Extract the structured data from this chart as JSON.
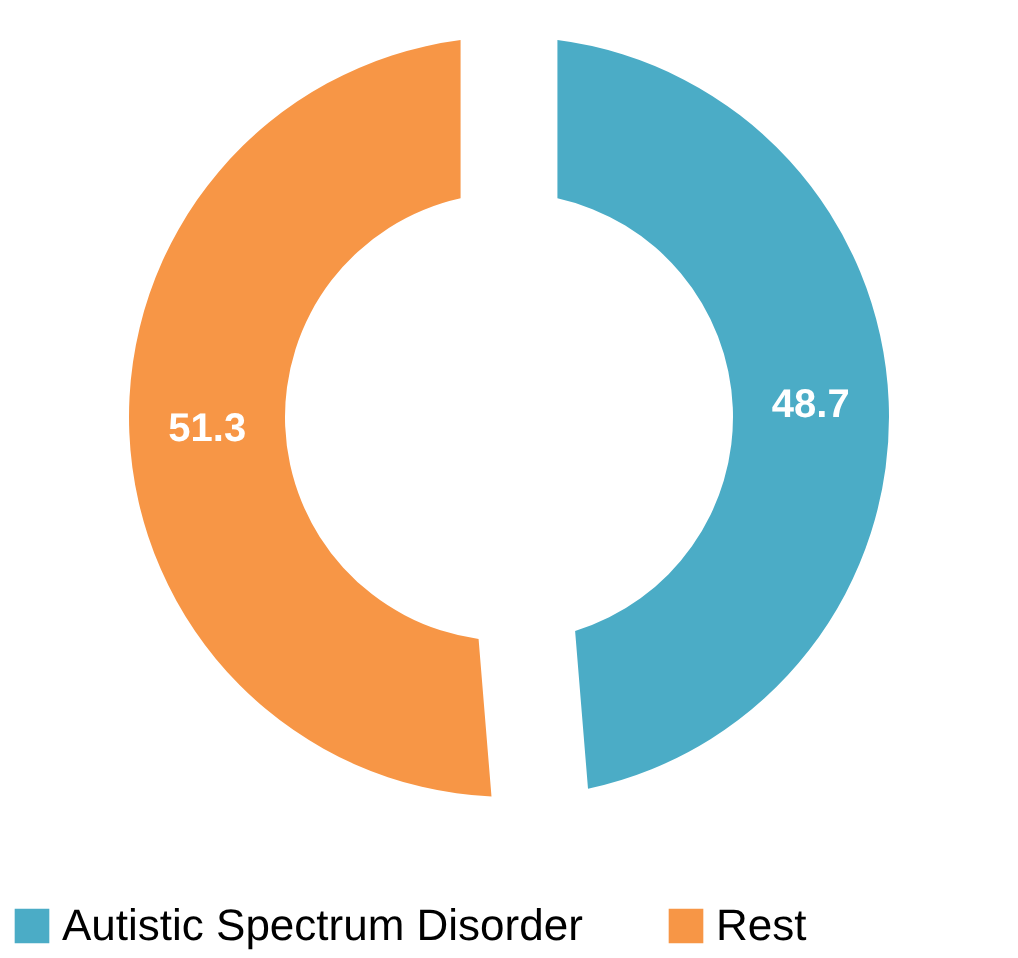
{
  "chart_data": {
    "type": "donut",
    "categories": [
      "Autistic Spectrum Disorder",
      "Rest"
    ],
    "values": [
      48.7,
      51.3
    ],
    "colors": [
      "#4bacc6",
      "#f79646"
    ],
    "data_labels": true,
    "legend": "bottom"
  }
}
